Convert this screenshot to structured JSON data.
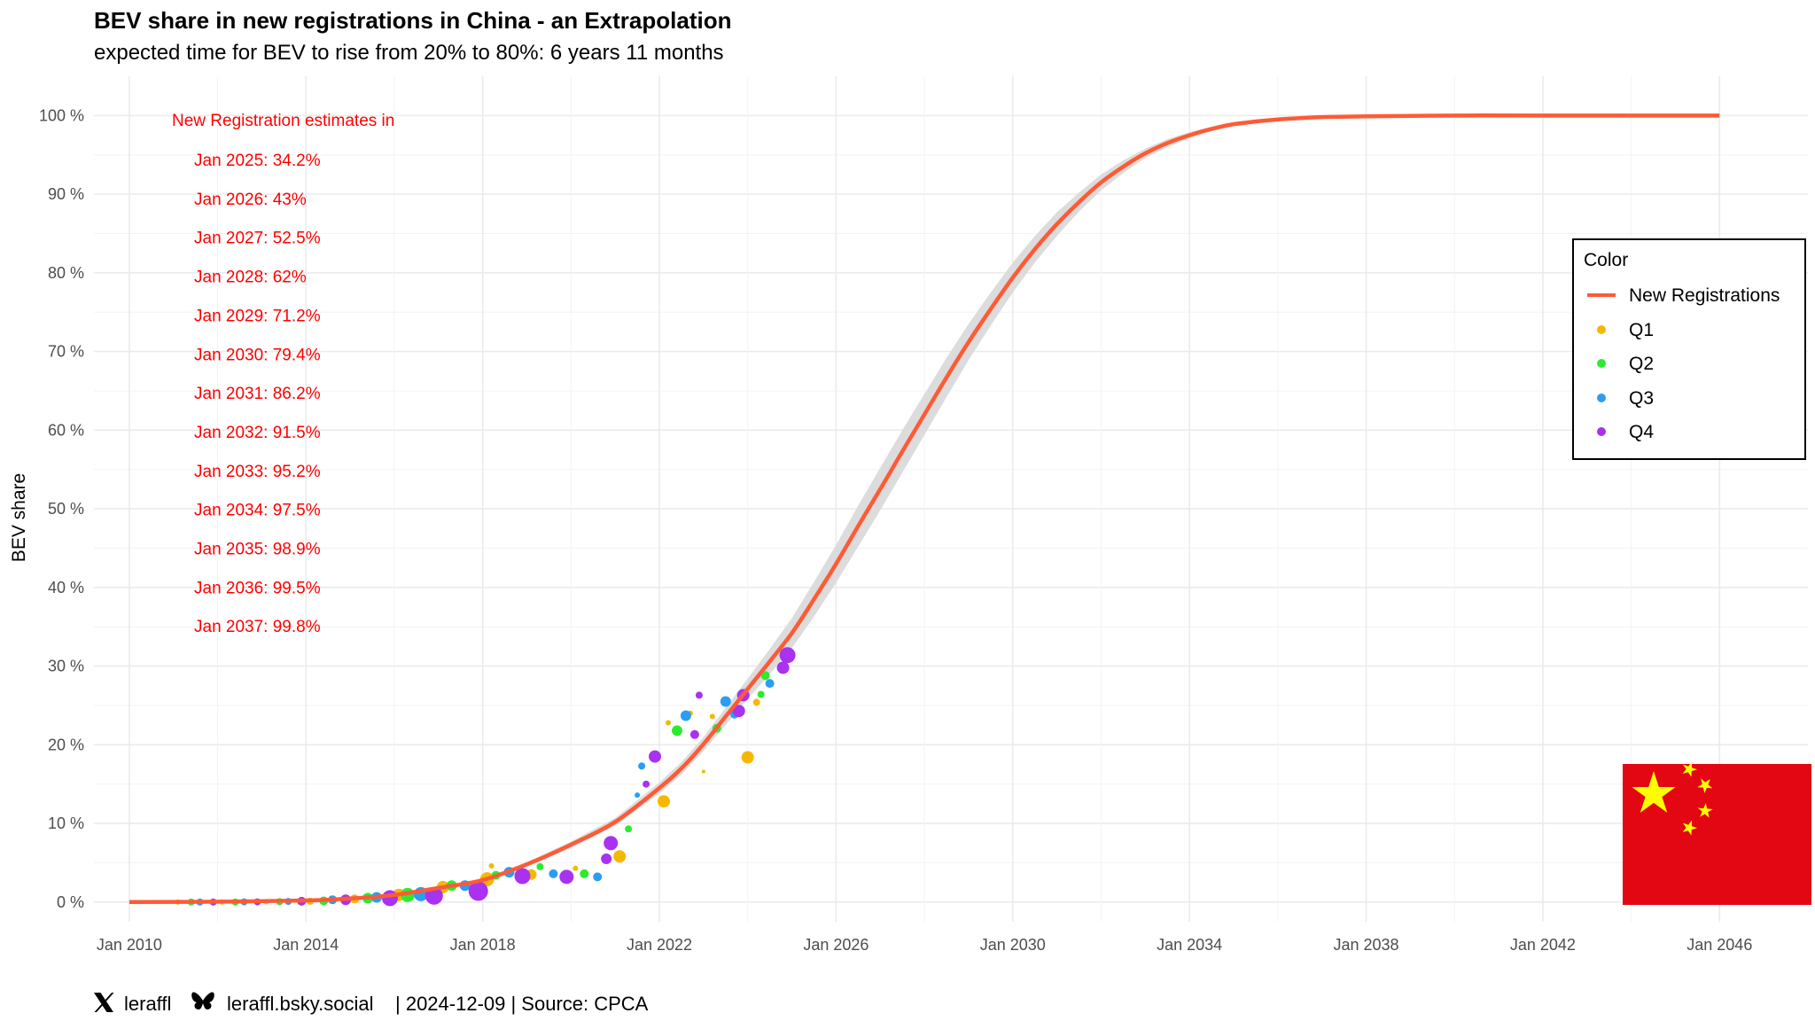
{
  "chart_data": {
    "type": "line",
    "title": "BEV share in new registrations in China - an Extrapolation",
    "subtitle": "expected time for BEV to rise from 20% to 80%: 6 years 11 months",
    "ylabel": "BEV share",
    "xlabel": "",
    "xlim": [
      2009.2,
      2048.0
    ],
    "ylim": [
      -2.5,
      105
    ],
    "x_ticks": [
      {
        "value": 2010,
        "label": "Jan 2010"
      },
      {
        "value": 2014,
        "label": "Jan 2014"
      },
      {
        "value": 2018,
        "label": "Jan 2018"
      },
      {
        "value": 2022,
        "label": "Jan 2022"
      },
      {
        "value": 2026,
        "label": "Jan 2026"
      },
      {
        "value": 2030,
        "label": "Jan 2030"
      },
      {
        "value": 2034,
        "label": "Jan 2034"
      },
      {
        "value": 2038,
        "label": "Jan 2038"
      },
      {
        "value": 2042,
        "label": "Jan 2042"
      },
      {
        "value": 2046,
        "label": "Jan 2046"
      }
    ],
    "y_ticks": [
      {
        "value": 0,
        "label": "0 %"
      },
      {
        "value": 10,
        "label": "10 %"
      },
      {
        "value": 20,
        "label": "20 %"
      },
      {
        "value": 30,
        "label": "30 %"
      },
      {
        "value": 40,
        "label": "40 %"
      },
      {
        "value": 50,
        "label": "50 %"
      },
      {
        "value": 60,
        "label": "60 %"
      },
      {
        "value": 70,
        "label": "70 %"
      },
      {
        "value": 80,
        "label": "80 %"
      },
      {
        "value": 90,
        "label": "90 %"
      },
      {
        "value": 100,
        "label": "100 %"
      }
    ],
    "grid": true,
    "fit_line": {
      "name": "New Registrations",
      "color": "#ff5a36",
      "band_color": "#dcdcdc",
      "x": [
        2010,
        2012,
        2014,
        2015,
        2016,
        2017,
        2018,
        2019,
        2020,
        2021,
        2022,
        2022.5,
        2023,
        2023.5,
        2024,
        2024.5,
        2025,
        2025.5,
        2026,
        2026.5,
        2027,
        2027.5,
        2028,
        2028.5,
        2029,
        2029.5,
        2030,
        2030.5,
        2031,
        2031.5,
        2032,
        2032.5,
        2033,
        2033.5,
        2034,
        2034.5,
        2035,
        2036,
        2037,
        2038,
        2040,
        2042,
        2046
      ],
      "y": [
        0.0,
        0.05,
        0.2,
        0.45,
        0.9,
        1.8,
        2.8,
        4.8,
        7.3,
        10.2,
        14.5,
        17.0,
        20.1,
        23.6,
        27.1,
        30.6,
        34.2,
        38.5,
        43.0,
        47.8,
        52.5,
        57.3,
        62.0,
        66.7,
        71.2,
        75.4,
        79.4,
        83.0,
        86.2,
        89.0,
        91.5,
        93.5,
        95.2,
        96.5,
        97.5,
        98.3,
        98.9,
        99.5,
        99.8,
        99.9,
        100.0,
        100.0,
        100.0
      ],
      "band_halfwidth": [
        0.0,
        0.0,
        0.0,
        0.05,
        0.1,
        0.15,
        0.2,
        0.3,
        0.4,
        0.5,
        0.7,
        0.8,
        0.9,
        1.1,
        1.3,
        1.6,
        1.9,
        2.2,
        2.4,
        2.6,
        2.7,
        2.7,
        2.6,
        2.5,
        2.3,
        2.1,
        1.9,
        1.7,
        1.5,
        1.2,
        1.0,
        0.8,
        0.6,
        0.5,
        0.4,
        0.3,
        0.2,
        0.1,
        0.05,
        0.0,
        0.0,
        0.0,
        0.0
      ]
    },
    "series": [
      {
        "name": "Q1",
        "color": "#f5b800",
        "points": [
          {
            "x": 2011.1,
            "y": 0.0,
            "s": 3
          },
          {
            "x": 2012.1,
            "y": 0.0,
            "s": 3
          },
          {
            "x": 2013.1,
            "y": 0.05,
            "s": 3
          },
          {
            "x": 2014.1,
            "y": 0.1,
            "s": 4
          },
          {
            "x": 2015.1,
            "y": 0.4,
            "s": 5
          },
          {
            "x": 2016.1,
            "y": 0.9,
            "s": 7
          },
          {
            "x": 2017.1,
            "y": 1.9,
            "s": 7
          },
          {
            "x": 2018.1,
            "y": 2.9,
            "s": 8
          },
          {
            "x": 2018.2,
            "y": 4.6,
            "s": 3
          },
          {
            "x": 2019.1,
            "y": 3.5,
            "s": 6
          },
          {
            "x": 2020.1,
            "y": 4.3,
            "s": 3
          },
          {
            "x": 2021.1,
            "y": 5.8,
            "s": 7
          },
          {
            "x": 2022.1,
            "y": 12.8,
            "s": 7
          },
          {
            "x": 2022.2,
            "y": 22.8,
            "s": 3
          },
          {
            "x": 2022.7,
            "y": 24.0,
            "s": 3
          },
          {
            "x": 2023.0,
            "y": 16.6,
            "s": 2
          },
          {
            "x": 2023.2,
            "y": 23.6,
            "s": 3
          },
          {
            "x": 2024.0,
            "y": 18.4,
            "s": 7
          },
          {
            "x": 2024.2,
            "y": 25.4,
            "s": 4
          }
        ]
      },
      {
        "name": "Q2",
        "color": "#2eea2e",
        "points": [
          {
            "x": 2011.4,
            "y": 0.0,
            "s": 4
          },
          {
            "x": 2012.4,
            "y": 0.0,
            "s": 4
          },
          {
            "x": 2013.4,
            "y": 0.05,
            "s": 4
          },
          {
            "x": 2014.4,
            "y": 0.15,
            "s": 5
          },
          {
            "x": 2015.4,
            "y": 0.5,
            "s": 6
          },
          {
            "x": 2016.3,
            "y": 0.9,
            "s": 8
          },
          {
            "x": 2017.3,
            "y": 2.1,
            "s": 6
          },
          {
            "x": 2018.3,
            "y": 3.4,
            "s": 5
          },
          {
            "x": 2019.3,
            "y": 4.5,
            "s": 4
          },
          {
            "x": 2020.3,
            "y": 3.6,
            "s": 5
          },
          {
            "x": 2021.3,
            "y": 9.3,
            "s": 4
          },
          {
            "x": 2022.4,
            "y": 21.8,
            "s": 6
          },
          {
            "x": 2023.3,
            "y": 22.1,
            "s": 5
          },
          {
            "x": 2024.3,
            "y": 26.4,
            "s": 4
          },
          {
            "x": 2024.4,
            "y": 28.8,
            "s": 5
          }
        ]
      },
      {
        "name": "Q3",
        "color": "#2b9df5",
        "points": [
          {
            "x": 2011.6,
            "y": 0.0,
            "s": 4
          },
          {
            "x": 2012.6,
            "y": 0.02,
            "s": 4
          },
          {
            "x": 2013.6,
            "y": 0.08,
            "s": 4
          },
          {
            "x": 2014.6,
            "y": 0.3,
            "s": 5
          },
          {
            "x": 2015.6,
            "y": 0.6,
            "s": 6
          },
          {
            "x": 2016.6,
            "y": 1.0,
            "s": 8
          },
          {
            "x": 2017.6,
            "y": 2.1,
            "s": 6
          },
          {
            "x": 2018.6,
            "y": 3.8,
            "s": 6
          },
          {
            "x": 2019.6,
            "y": 3.6,
            "s": 5
          },
          {
            "x": 2020.6,
            "y": 3.2,
            "s": 5
          },
          {
            "x": 2021.5,
            "y": 13.6,
            "s": 3
          },
          {
            "x": 2021.6,
            "y": 17.3,
            "s": 4
          },
          {
            "x": 2022.6,
            "y": 23.7,
            "s": 6
          },
          {
            "x": 2023.5,
            "y": 25.5,
            "s": 6
          },
          {
            "x": 2023.7,
            "y": 23.9,
            "s": 5
          },
          {
            "x": 2024.5,
            "y": 27.8,
            "s": 5
          }
        ]
      },
      {
        "name": "Q4",
        "color": "#a832f0",
        "points": [
          {
            "x": 2011.9,
            "y": 0.0,
            "s": 4
          },
          {
            "x": 2012.9,
            "y": 0.02,
            "s": 4
          },
          {
            "x": 2013.9,
            "y": 0.1,
            "s": 5
          },
          {
            "x": 2014.9,
            "y": 0.3,
            "s": 6
          },
          {
            "x": 2015.9,
            "y": 0.5,
            "s": 9
          },
          {
            "x": 2016.9,
            "y": 0.8,
            "s": 10
          },
          {
            "x": 2017.9,
            "y": 1.4,
            "s": 11
          },
          {
            "x": 2018.9,
            "y": 3.3,
            "s": 9
          },
          {
            "x": 2019.9,
            "y": 3.2,
            "s": 8
          },
          {
            "x": 2020.9,
            "y": 7.5,
            "s": 8
          },
          {
            "x": 2020.8,
            "y": 5.5,
            "s": 6
          },
          {
            "x": 2021.7,
            "y": 15.0,
            "s": 4
          },
          {
            "x": 2021.9,
            "y": 18.5,
            "s": 7
          },
          {
            "x": 2022.8,
            "y": 21.3,
            "s": 5
          },
          {
            "x": 2022.9,
            "y": 26.3,
            "s": 4
          },
          {
            "x": 2023.9,
            "y": 26.3,
            "s": 7
          },
          {
            "x": 2023.8,
            "y": 24.3,
            "s": 7
          },
          {
            "x": 2024.8,
            "y": 29.8,
            "s": 7
          },
          {
            "x": 2024.9,
            "y": 31.4,
            "s": 9
          }
        ]
      }
    ],
    "annotation": {
      "heading": "New Registration estimates in",
      "lines": [
        "Jan 2025: 34.2%",
        "Jan 2026: 43%",
        "Jan 2027: 52.5%",
        "Jan 2028: 62%",
        "Jan 2029: 71.2%",
        "Jan 2030: 79.4%",
        "Jan 2031: 86.2%",
        "Jan 2032: 91.5%",
        "Jan 2033: 95.2%",
        "Jan 2034: 97.5%",
        "Jan 2035: 98.9%",
        "Jan 2036: 99.5%",
        "Jan 2037: 99.8%"
      ],
      "color": "#ff0000"
    },
    "legend": {
      "title": "Color",
      "placement": "right",
      "items": [
        {
          "label": "New Registrations",
          "kind": "line",
          "color": "#ff5a36"
        },
        {
          "label": "Q1",
          "kind": "point",
          "color": "#f5b800"
        },
        {
          "label": "Q2",
          "kind": "point",
          "color": "#2eea2e"
        },
        {
          "label": "Q3",
          "kind": "point",
          "color": "#2b9df5"
        },
        {
          "label": "Q4",
          "kind": "point",
          "color": "#a832f0"
        }
      ]
    }
  },
  "caption": {
    "x_handle": "leraffl",
    "bsky_handle": "leraffl.bsky.social",
    "rest": "| 2024-12-09 | Source: CPCA",
    "x_icon": "x-logo-icon",
    "bsky_icon": "butterfly-icon"
  },
  "flag": {
    "name": "china-flag-icon",
    "field_color": "#e30613",
    "star_color": "#ffff00"
  }
}
